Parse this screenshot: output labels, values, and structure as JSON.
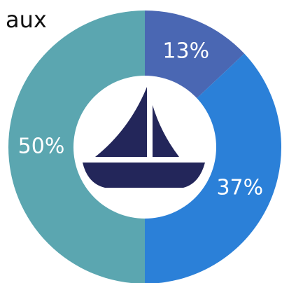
{
  "chart_data": {
    "type": "donut",
    "title": "aux",
    "categories": [
      "",
      "",
      ""
    ],
    "values": [
      13,
      37,
      50
    ],
    "value_labels": [
      "13%",
      "37%",
      "50%"
    ],
    "colors": [
      "#4a67b3",
      "#2b80d8",
      "#5ba6b0"
    ]
  }
}
